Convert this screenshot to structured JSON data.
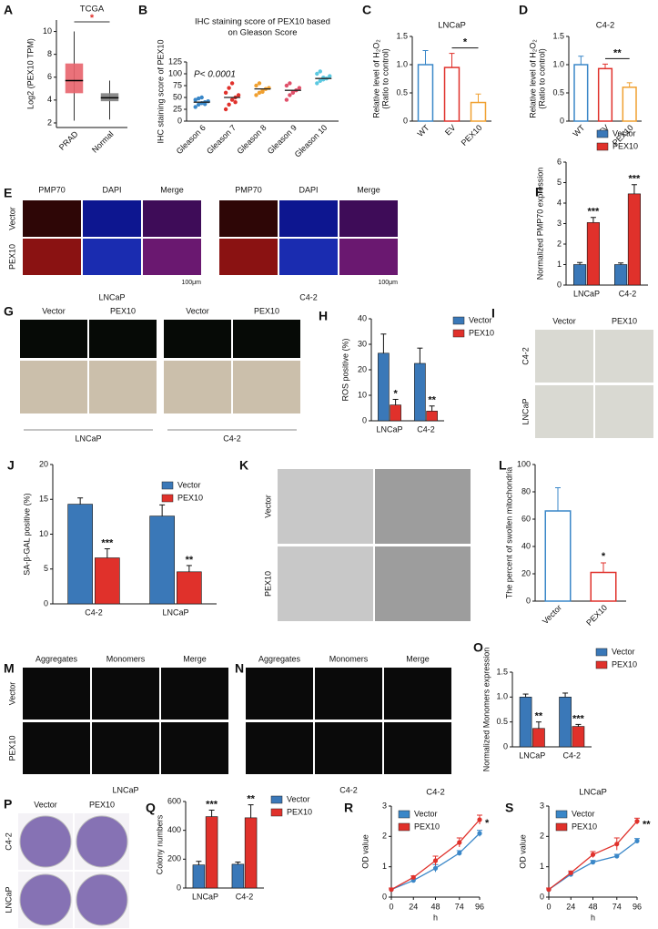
{
  "chart_data": [
    {
      "type": "box",
      "label": "A",
      "title": "TCGA",
      "ylabel": "Log2 (PEX10 TPM)",
      "categories": [
        "PRAD",
        "Normal"
      ],
      "boxes": [
        {
          "min": 2.2,
          "q1": 4.6,
          "median": 5.7,
          "q3": 7.2,
          "max": 10,
          "color": "#e8636b"
        },
        {
          "min": 2.3,
          "q1": 3.9,
          "median": 4.2,
          "q3": 4.6,
          "max": 5.7,
          "color": "#808080"
        }
      ],
      "ylim": [
        1.6,
        11
      ],
      "yticks": [
        2,
        4,
        6,
        8,
        10
      ],
      "sig": "*"
    },
    {
      "type": "dot",
      "label": "B",
      "title": [
        "IHC staining score of PEX10 based",
        "on Gleason Score"
      ],
      "ylabel": "IHC staining score of PEX10",
      "annotation": "P< 0.0001",
      "categories": [
        "Gleason 6",
        "Gleason 7",
        "Gleason 8",
        "Gleason 9",
        "Gleason 10"
      ],
      "colors": [
        "#3a87c8",
        "#e0312b",
        "#f0a030",
        "#e0506a",
        "#5bc8e0"
      ],
      "points": [
        [
          30,
          35,
          38,
          40,
          42,
          45,
          48,
          50,
          36
        ],
        [
          25,
          35,
          45,
          50,
          55,
          60,
          70,
          80,
          40
        ],
        [
          55,
          60,
          65,
          68,
          70,
          75,
          80,
          62
        ],
        [
          45,
          55,
          60,
          65,
          70,
          75,
          80,
          62
        ],
        [
          80,
          85,
          88,
          90,
          95,
          100,
          105,
          92
        ]
      ],
      "means": [
        40,
        50,
        68,
        65,
        90
      ],
      "ylim": [
        0,
        125
      ],
      "yticks": [
        0,
        25,
        50,
        75,
        100,
        125
      ]
    },
    {
      "type": "bar",
      "style": "outline",
      "label": "C",
      "title": "LNCaP",
      "ylabel": [
        "Relative level of H₂O₂",
        "(Ratio to control)"
      ],
      "categories": [
        "WT",
        "EV",
        "PEX10"
      ],
      "values": [
        1,
        0.95,
        0.33
      ],
      "errors": [
        0.25,
        0.25,
        0.15
      ],
      "colors": [
        "#3a87c8",
        "#e0312b",
        "#f0a030"
      ],
      "ylim": [
        0,
        1.5
      ],
      "yticks": [
        0,
        0.5,
        {
          "value": 1,
          "label": "1.0"
        },
        1.5
      ],
      "sig": "*"
    },
    {
      "type": "bar",
      "style": "outline",
      "label": "D",
      "title": "C4-2",
      "ylabel": [
        "Relative level of H₂O₂",
        "(Ratio to control)"
      ],
      "categories": [
        "WT",
        "EV",
        "PEX10"
      ],
      "values": [
        1,
        0.93,
        0.6
      ],
      "errors": [
        0.15,
        0.08,
        0.08
      ],
      "colors": [
        "#3a87c8",
        "#e0312b",
        "#f0a030"
      ],
      "ylim": [
        0,
        1.5
      ],
      "yticks": [
        0,
        0.5,
        {
          "value": 1,
          "label": "1.0"
        },
        1.5
      ],
      "sig": "**"
    },
    {
      "type": "grouped_bar",
      "label": "F",
      "ylabel": "Normalized PMP70 expression",
      "categories": [
        "LNCaP",
        "C4-2"
      ],
      "series": [
        {
          "name": "Vector",
          "color": "#3a78b8",
          "values": [
            1,
            1
          ],
          "errors": [
            0.1,
            0.08
          ]
        },
        {
          "name": "PEX10",
          "color": "#e0312b",
          "values": [
            3.05,
            4.45
          ],
          "errors": [
            0.25,
            0.45
          ],
          "sig": [
            "***",
            "***"
          ]
        }
      ],
      "ylim": [
        0,
        6
      ],
      "yticks": [
        0,
        1,
        2,
        3,
        4,
        5,
        6
      ]
    },
    {
      "type": "grouped_bar",
      "label": "H",
      "ylabel": "ROS positive (%)",
      "categories": [
        "LNCaP",
        "C4-2"
      ],
      "series": [
        {
          "name": "Vector",
          "color": "#3a78b8",
          "values": [
            26.5,
            22.5
          ],
          "errors": [
            7.5,
            6
          ]
        },
        {
          "name": "PEX10",
          "color": "#e0312b",
          "values": [
            6.2,
            3.8
          ],
          "errors": [
            2.2,
            2
          ],
          "sig": [
            "*",
            "**"
          ]
        }
      ],
      "ylim": [
        0,
        40
      ],
      "yticks": [
        0,
        10,
        20,
        30,
        40
      ]
    },
    {
      "type": "grouped_bar",
      "label": "J",
      "ylabel": "SA-β-GAL positive (%)",
      "categories": [
        "C4-2",
        "LNCaP"
      ],
      "series": [
        {
          "name": "Vector",
          "color": "#3a78b8",
          "values": [
            14.3,
            12.6
          ],
          "errors": [
            0.9,
            1.6
          ]
        },
        {
          "name": "PEX10",
          "color": "#e0312b",
          "values": [
            6.6,
            4.6
          ],
          "errors": [
            1.3,
            0.9
          ],
          "sig": [
            "***",
            "**"
          ]
        }
      ],
      "ylim": [
        0,
        20
      ],
      "yticks": [
        0,
        5,
        10,
        15,
        20
      ]
    },
    {
      "type": "bar",
      "style": "outline",
      "label": "L",
      "ylabel": "The percent of swollen mitochondria",
      "categories": [
        "Vector",
        "PEX10"
      ],
      "values": [
        66,
        21
      ],
      "errors": [
        17,
        7
      ],
      "colors": [
        "#3a87c8",
        "#e0312b"
      ],
      "ylim": [
        0,
        100
      ],
      "yticks": [
        0,
        20,
        40,
        60,
        80,
        100
      ],
      "sig": "*"
    },
    {
      "type": "grouped_bar",
      "label": "O",
      "ylabel": "Normalized Monomers expression",
      "categories": [
        "LNCaP",
        "C4-2"
      ],
      "series": [
        {
          "name": "Vector",
          "color": "#3a78b8",
          "values": [
            1,
            1
          ],
          "errors": [
            0.06,
            0.08
          ]
        },
        {
          "name": "PEX10",
          "color": "#e0312b",
          "values": [
            0.37,
            0.41
          ],
          "errors": [
            0.13,
            0.04
          ],
          "sig": [
            "**",
            "***"
          ]
        }
      ],
      "ylim": [
        0,
        1.5
      ],
      "yticks": [
        0,
        0.5,
        {
          "value": 1,
          "label": "1.0"
        },
        1.5
      ]
    },
    {
      "type": "grouped_bar",
      "label": "Q",
      "ylabel": "Colony numbers",
      "categories": [
        "LNCaP",
        "C4-2"
      ],
      "series": [
        {
          "name": "Vector",
          "color": "#3a78b8",
          "values": [
            160,
            165
          ],
          "errors": [
            25,
            15
          ]
        },
        {
          "name": "PEX10",
          "color": "#e0312b",
          "values": [
            495,
            487
          ],
          "errors": [
            45,
            90
          ],
          "sig": [
            "***",
            "**"
          ]
        }
      ],
      "ylim": [
        0,
        600
      ],
      "yticks": [
        0,
        200,
        400,
        600
      ]
    },
    {
      "type": "line",
      "label": "R",
      "title": "C4-2",
      "xlabel": "h",
      "ylabel": "OD value",
      "x": [
        0,
        24,
        48,
        74,
        96
      ],
      "xlim": [
        0,
        96
      ],
      "xticks": [
        0,
        24,
        48,
        74,
        96
      ],
      "series": [
        {
          "name": "Vector",
          "color": "#3a87c8",
          "values": [
            0.25,
            0.55,
            0.95,
            1.45,
            2.1
          ],
          "errors": [
            0.05,
            0.06,
            0.12,
            0.08,
            0.1
          ]
        },
        {
          "name": "PEX10",
          "color": "#e0312b",
          "values": [
            0.25,
            0.65,
            1.2,
            1.8,
            2.55
          ],
          "errors": [
            0.05,
            0.05,
            0.15,
            0.15,
            0.15
          ]
        }
      ],
      "ylim": [
        0,
        3
      ],
      "yticks": [
        0,
        1,
        2,
        3
      ],
      "sig": "*"
    },
    {
      "type": "line",
      "label": "S",
      "title": "LNCaP",
      "xlabel": "h",
      "ylabel": "OD value",
      "x": [
        0,
        24,
        48,
        74,
        96
      ],
      "xlim": [
        0,
        96
      ],
      "xticks": [
        0,
        24,
        48,
        74,
        96
      ],
      "series": [
        {
          "name": "Vector",
          "color": "#3a87c8",
          "values": [
            0.25,
            0.75,
            1.15,
            1.35,
            1.85
          ],
          "errors": [
            0.05,
            0.05,
            0.06,
            0.06,
            0.08
          ]
        },
        {
          "name": "PEX10",
          "color": "#e0312b",
          "values": [
            0.25,
            0.8,
            1.4,
            1.75,
            2.5
          ],
          "errors": [
            0.05,
            0.06,
            0.1,
            0.2,
            0.1
          ]
        }
      ],
      "ylim": [
        0,
        3
      ],
      "yticks": [
        0,
        1,
        2,
        3
      ],
      "sig": "**"
    }
  ],
  "images": [
    {
      "label": "E",
      "columns": [
        "PMP70",
        "DAPI",
        "Merge",
        "PMP70",
        "DAPI",
        "Merge"
      ],
      "rows": [
        "Vector",
        "PEX10"
      ],
      "groups": [
        "LNCaP",
        "C4-2"
      ],
      "scales": [
        "100μm",
        "100μm"
      ]
    },
    {
      "label": "G",
      "columns": [
        "Vector",
        "PEX10",
        "Vector",
        "PEX10"
      ],
      "groups": [
        "LNCaP",
        "C4-2"
      ]
    },
    {
      "label": "I",
      "columns": [
        "Vector",
        "PEX10"
      ],
      "rows": [
        "C4-2",
        "LNCaP"
      ]
    },
    {
      "label": "K",
      "rows": [
        "Vector",
        "PEX10"
      ]
    },
    {
      "label": "M",
      "columns": [
        "Aggregates",
        "Monomers",
        "Merge"
      ],
      "rows": [
        "Vector",
        "PEX10"
      ],
      "groups": [
        "LNCaP"
      ]
    },
    {
      "label": "N",
      "columns": [
        "Aggregates",
        "Monomers",
        "Merge"
      ],
      "groups": [
        "C4-2"
      ]
    },
    {
      "label": "P",
      "columns": [
        "Vector",
        "PEX10"
      ],
      "rows": [
        "C4-2",
        "LNCaP"
      ]
    }
  ]
}
